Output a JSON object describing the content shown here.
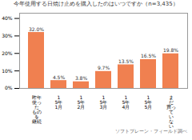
{
  "chart_data": {
    "type": "bar",
    "title": "今年使用する日焼け止めを購入したのはいつですか（n=3,435）",
    "categories": [
      "昨年\n使っ\nた\nもの\nを\n継続",
      "1\n5年\n1月",
      "1\n5年\n2月",
      "1\n5年\n3月",
      "1\n5年\n4月",
      "1\n5年\n5月",
      "ま\nだ\n買っ\nて\nい\nな\nい"
    ],
    "values": [
      32.0,
      4.5,
      3.8,
      9.7,
      13.5,
      16.5,
      19.8
    ],
    "value_labels": [
      "32.0%",
      "4.5%",
      "3.8%",
      "9.7%",
      "13.5%",
      "16.5%",
      "19.8%"
    ],
    "data_labels": true,
    "color": "#F08050",
    "ylim": [
      0,
      43
    ],
    "yticks": [
      {
        "value": 0,
        "label": "0%"
      },
      {
        "value": 10,
        "label": "10%"
      },
      {
        "value": 20,
        "label": "20%"
      },
      {
        "value": 30,
        "label": "30%"
      },
      {
        "value": 40,
        "label": "40%"
      }
    ],
    "grid": false,
    "source": "ソフトブレーン・フィールド調べ"
  }
}
